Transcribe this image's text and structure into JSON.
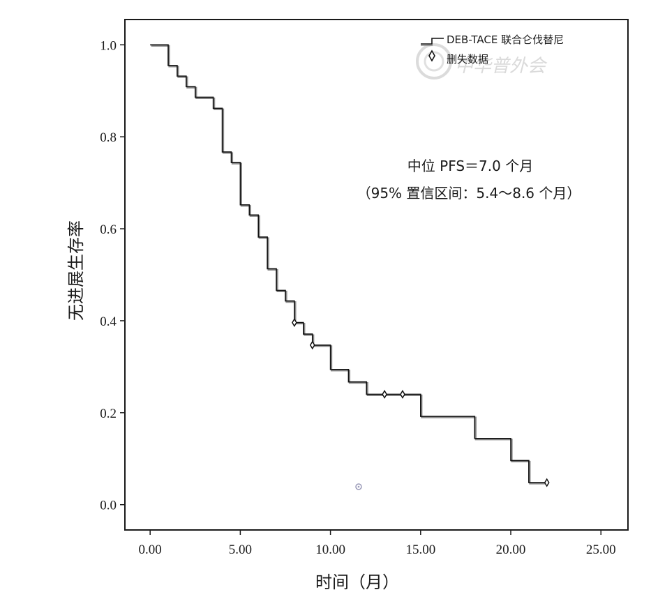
{
  "chart_data": {
    "type": "line",
    "subtype": "kaplan-meier step curve",
    "xlabel": "时间（月）",
    "ylabel": "无进展生存率",
    "xlim": [
      -1.4,
      26.5
    ],
    "ylim": [
      -0.055,
      1.055
    ],
    "x_ticks": [
      0,
      5,
      10,
      15,
      20,
      25
    ],
    "x_tick_labels": [
      "0.00",
      "5.00",
      "10.00",
      "15.00",
      "20.00",
      "25.00"
    ],
    "y_ticks": [
      0,
      0.2,
      0.4,
      0.6,
      0.8,
      1.0
    ],
    "y_tick_labels": [
      "0.0",
      "0.2",
      "0.4",
      "0.6",
      "0.8",
      "1.0"
    ],
    "grid": false,
    "legend_position": "top-right",
    "series": [
      {
        "name": "DEB-TACE 联合仑伐替尼",
        "color": "#111111",
        "steps": [
          [
            0.0,
            1.0
          ],
          [
            1.0,
            0.955
          ],
          [
            1.5,
            0.932
          ],
          [
            2.0,
            0.909
          ],
          [
            2.5,
            0.886
          ],
          [
            3.5,
            0.862
          ],
          [
            4.0,
            0.767
          ],
          [
            4.5,
            0.744
          ],
          [
            5.0,
            0.652
          ],
          [
            5.5,
            0.63
          ],
          [
            6.0,
            0.582
          ],
          [
            6.5,
            0.513
          ],
          [
            7.0,
            0.466
          ],
          [
            7.5,
            0.443
          ],
          [
            8.0,
            0.396
          ],
          [
            8.5,
            0.371
          ],
          [
            9.0,
            0.347
          ],
          [
            10.0,
            0.294
          ],
          [
            11.0,
            0.267
          ],
          [
            12.0,
            0.24
          ],
          [
            15.0,
            0.192
          ],
          [
            18.0,
            0.144
          ],
          [
            20.0,
            0.096
          ],
          [
            21.0,
            0.048
          ],
          [
            22.0,
            0.048
          ]
        ],
        "censored": [
          [
            8.0,
            0.396
          ],
          [
            9.0,
            0.347
          ],
          [
            13.0,
            0.24
          ],
          [
            14.0,
            0.24
          ],
          [
            22.0,
            0.048
          ]
        ]
      }
    ],
    "censored_legend_label": "删失数据",
    "annotations": [
      "中位 PFS＝7.0 个月",
      "（95% 置信区间：5.4～8.6 个月）"
    ],
    "watermark": "中华普外会"
  }
}
